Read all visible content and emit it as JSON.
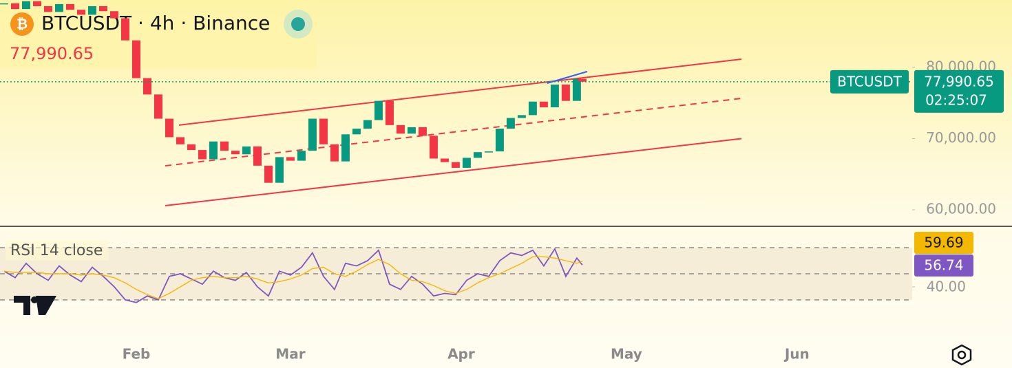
{
  "chart_data": {
    "type": "candlestick",
    "title": "BTCUSDT · 4h · Binance",
    "symbol": "BTCUSDT",
    "last_price": {
      "value": 77990.65,
      "label": "77,990.65"
    },
    "countdown": "02:25:07",
    "xlim": [
      7.25,
      172.9
    ],
    "xticks": [
      {
        "value": 32,
        "label": "Feb"
      },
      {
        "value": 60,
        "label": "Mar"
      },
      {
        "value": 91,
        "label": "Apr"
      },
      {
        "value": 121,
        "label": "May"
      },
      {
        "value": 152,
        "label": "Jun"
      }
    ],
    "ylim": [
      57780,
      89470
    ],
    "yticks": [
      {
        "value": 80000,
        "label": "80,000.00"
      },
      {
        "value": 70000,
        "label": "70,000.00"
      },
      {
        "value": 60000,
        "label": "60,000.00"
      }
    ],
    "x": [
      8,
      10,
      12,
      14,
      16,
      18,
      20,
      22,
      24,
      26,
      28,
      30,
      32,
      34,
      36,
      38,
      40,
      42,
      44,
      46,
      48,
      50,
      52,
      54,
      56,
      58,
      60,
      62,
      64,
      66,
      68,
      70,
      72,
      74,
      76,
      78,
      80,
      82,
      84,
      86,
      88,
      90,
      92,
      94,
      96,
      98,
      100,
      102,
      104,
      106,
      108,
      110,
      112,
      113
    ],
    "close": [
      89000,
      88200,
      89300,
      88600,
      87800,
      88900,
      88100,
      87400,
      88600,
      87900,
      86900,
      83800,
      78500,
      76200,
      72800,
      70200,
      69200,
      68400,
      67100,
      69600,
      68300,
      67800,
      68900,
      66200,
      63800,
      67400,
      66900,
      68300,
      72800,
      69200,
      66800,
      70600,
      71400,
      72600,
      75300,
      71900,
      70700,
      71600,
      70400,
      67200,
      66700,
      65900,
      67300,
      68100,
      68200,
      71400,
      72900,
      73300,
      75200,
      74400,
      77600,
      75300,
      78400,
      77990.65
    ],
    "up_color": "#089981",
    "down_color": "#f23645",
    "annotations": [
      {
        "x": [
          39.75,
          141.9
        ],
        "y": [
          71900,
          81160
        ],
        "color": "#f23645",
        "dash": false
      },
      {
        "x": [
          37.25,
          141.9
        ],
        "y": [
          66180,
          75650
        ],
        "color": "#f23645",
        "dash": true
      },
      {
        "x": [
          37.25,
          141.9
        ],
        "y": [
          60580,
          70000
        ],
        "color": "#f23645",
        "dash": false
      },
      {
        "x": [
          106.6,
          113.9
        ],
        "y": [
          77780,
          79420
        ],
        "color": "#2962ff",
        "dash": false
      }
    ],
    "indicator": {
      "title": "RSI 14 close",
      "ylim": [
        1.6,
        85.8
      ],
      "yticks": [
        {
          "value": 40,
          "label": "40.00"
        }
      ],
      "levels": [
        70,
        50,
        30
      ],
      "series": [
        {
          "name": "RSI",
          "color": "#7e57c2",
          "values": [
            52,
            47,
            58,
            50,
            45,
            56,
            49,
            44,
            55,
            48,
            40,
            30,
            28,
            33,
            30,
            48,
            50,
            46,
            42,
            52,
            47,
            45,
            51,
            40,
            33,
            52,
            49,
            55,
            66,
            48,
            38,
            58,
            56,
            60,
            68,
            42,
            38,
            48,
            42,
            33,
            35,
            34,
            45,
            50,
            48,
            60,
            66,
            64,
            68,
            56,
            69,
            48,
            62,
            56.74
          ],
          "value_label": "56.74"
        },
        {
          "name": "RSI MA",
          "color": "#f5b800",
          "values": [
            52,
            51,
            51,
            51,
            50,
            50,
            50,
            49,
            50,
            49,
            47,
            43,
            38,
            34,
            31,
            35,
            40,
            45,
            47,
            48,
            47,
            47,
            48,
            46,
            43,
            44,
            46,
            49,
            54,
            55,
            50,
            48,
            52,
            57,
            61,
            57,
            50,
            45,
            44,
            41,
            37,
            35,
            38,
            43,
            47,
            50,
            54,
            58,
            63,
            63,
            62,
            60,
            58,
            59.69
          ],
          "value_label": "59.69"
        }
      ]
    }
  }
}
